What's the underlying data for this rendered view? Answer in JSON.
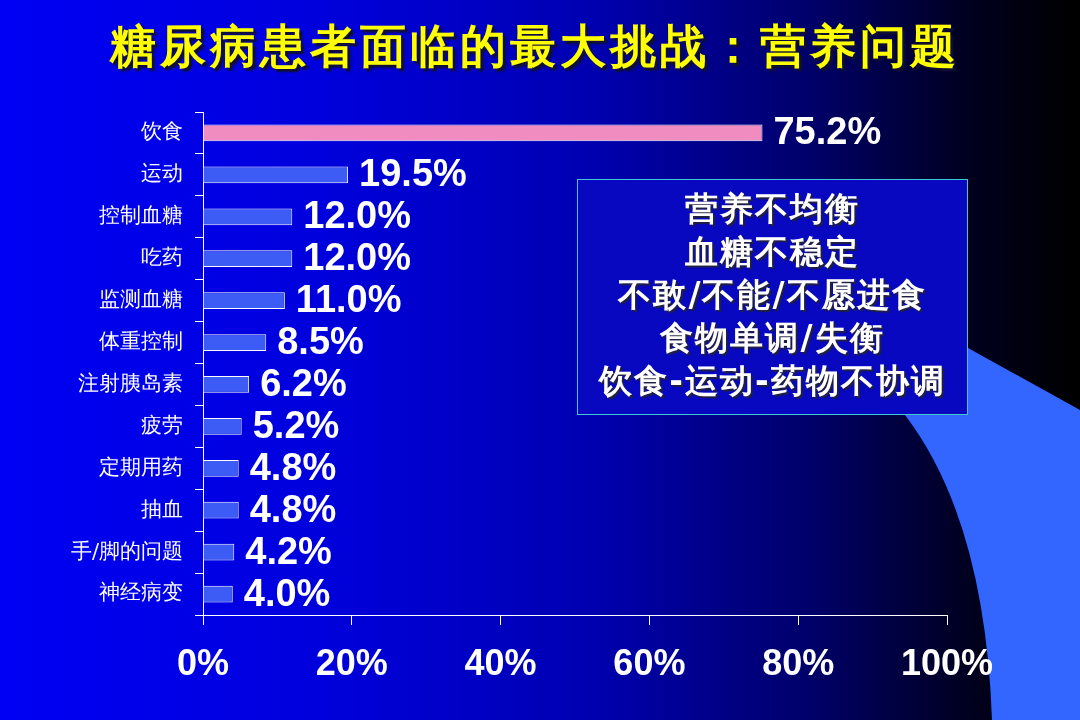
{
  "chart_data": {
    "type": "bar",
    "orientation": "horizontal",
    "title": "糖尿病患者面临的最大挑战：营养问题",
    "categories": [
      "饮食",
      "运动",
      "控制血糖",
      "吃药",
      "监测血糖",
      "体重控制",
      "注射胰岛素",
      "疲劳",
      "定期用药",
      "抽血",
      "手/脚的问题",
      "神经病变"
    ],
    "values": [
      75.2,
      19.5,
      12.0,
      12.0,
      11.0,
      8.5,
      6.2,
      5.2,
      4.8,
      4.8,
      4.2,
      4.0
    ],
    "value_labels": [
      "75.2%",
      "19.5%",
      "12.0%",
      "12.0%",
      "11.0%",
      "8.5%",
      "6.2%",
      "5.2%",
      "4.8%",
      "4.8%",
      "4.2%",
      "4.0%"
    ],
    "colors": [
      "#f08cc0",
      "#3d5cf5",
      "#3d5cf5",
      "#3d5cf5",
      "#3d5cf5",
      "#3d5cf5",
      "#3d5cf5",
      "#3d5cf5",
      "#3d5cf5",
      "#3d5cf5",
      "#3d5cf5",
      "#3d5cf5"
    ],
    "xlim": [
      0,
      100
    ],
    "xticks": [
      {
        "value": 0,
        "label": "0%"
      },
      {
        "value": 20,
        "label": "20%"
      },
      {
        "value": 40,
        "label": "40%"
      },
      {
        "value": 60,
        "label": "60%"
      },
      {
        "value": 80,
        "label": "80%"
      },
      {
        "value": 100,
        "label": "100%"
      }
    ],
    "grid": false,
    "legend": false,
    "annotations": [
      "营养不均衡",
      "血糖不稳定",
      "不敢/不能/不愿进食",
      "食物单调/失衡",
      "饮食-运动-药物不协调"
    ]
  }
}
